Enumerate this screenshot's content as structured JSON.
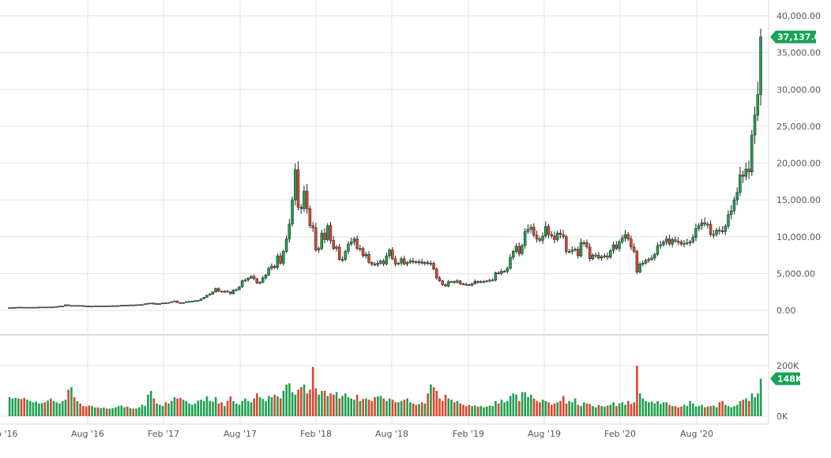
{
  "chart_data": {
    "type": "candlestick",
    "interval": "weekly",
    "x_tick_labels": [
      "b '16",
      "Aug '16",
      "Feb '17",
      "Aug '17",
      "Feb '18",
      "Aug '18",
      "Feb '19",
      "Aug '19",
      "Feb '20",
      "Aug '20"
    ],
    "price_axis": {
      "ticks": [
        "0.00",
        "5,000.00",
        "10,000.00",
        "15,000.00",
        "20,000.00",
        "25,000.00",
        "30,000.00",
        "35,000.00",
        "40,000.00"
      ],
      "ylim": [
        0,
        40000
      ]
    },
    "volume_axis": {
      "ticks": [
        "0K",
        "200K"
      ],
      "ylim": [
        0,
        200000
      ]
    },
    "last_price_label": "37,137.08",
    "last_volume_label": "148K",
    "colors": {
      "up": "#1f9e50",
      "down": "#d9472f",
      "badge": "#17a355",
      "grid": "#e3e3e3"
    },
    "grid": true,
    "close": [
      370,
      380,
      410,
      435,
      415,
      410,
      415,
      416,
      420,
      425,
      440,
      460,
      450,
      455,
      445,
      470,
      530,
      575,
      580,
      760,
      660,
      670,
      650,
      665,
      655,
      590,
      585,
      575,
      575,
      610,
      605,
      610,
      610,
      605,
      615,
      640,
      640,
      650,
      700,
      710,
      705,
      740,
      735,
      760,
      780,
      790,
      890,
      960,
      1000,
      830,
      920,
      920,
      1010,
      1000,
      1060,
      1180,
      1270,
      1050,
      970,
      1040,
      1180,
      1210,
      1240,
      1330,
      1350,
      1550,
      1770,
      2050,
      2200,
      2500,
      2950,
      2600,
      2500,
      2600,
      2500,
      2250,
      2750,
      2800,
      3200,
      4000,
      4100,
      4380,
      4600,
      4300,
      3700,
      3800,
      4400,
      4800,
      5700,
      6000,
      5800,
      7400,
      6400,
      8000,
      9700,
      11700,
      15000,
      19100,
      14000,
      13800,
      16200,
      13800,
      11500,
      11200,
      8200,
      8400,
      10500,
      9600,
      11500,
      9500,
      8400,
      8600,
      6900,
      6900,
      8000,
      9000,
      9300,
      9700,
      8400,
      8400,
      7400,
      7600,
      6500,
      6300,
      6200,
      6400,
      6700,
      6300,
      7400,
      8200,
      7000,
      6300,
      6400,
      7000,
      6300,
      6500,
      6700,
      6600,
      6500,
      6600,
      6400,
      6500,
      6350,
      6400,
      5600,
      4400,
      4000,
      3500,
      3300,
      3900,
      3900,
      3800,
      4000,
      3600,
      3550,
      3500,
      3400,
      3600,
      3950,
      3800,
      3900,
      3900,
      4000,
      4100,
      4100,
      5100,
      5000,
      5300,
      5300,
      5700,
      7200,
      8000,
      8700,
      7700,
      8800,
      10700,
      11000,
      11300,
      10200,
      9700,
      9500,
      10100,
      11400,
      10300,
      10100,
      9600,
      10500,
      10300,
      10000,
      8000,
      8000,
      8200,
      8300,
      7400,
      9200,
      9200,
      8600,
      7000,
      7500,
      7500,
      7100,
      7300,
      7400,
      7200,
      8100,
      8900,
      8400,
      9300,
      9800,
      10300,
      9700,
      8600,
      8000,
      5200,
      6300,
      6400,
      6800,
      6900,
      7100,
      7600,
      8800,
      8900,
      9300,
      9700,
      9000,
      9600,
      9400,
      9300,
      9000,
      9100,
      9200,
      9300,
      9900,
      11100,
      11500,
      11900,
      11700,
      11700,
      10300,
      10300,
      10900,
      10800,
      10700,
      11400,
      13000,
      13500,
      15000,
      16000,
      18400,
      18200,
      19200,
      18800,
      23800,
      26500,
      29300,
      37137.08
    ],
    "volume_k": [
      75,
      70,
      72,
      70,
      68,
      72,
      65,
      60,
      55,
      58,
      50,
      52,
      55,
      62,
      70,
      60,
      55,
      50,
      60,
      65,
      105,
      115,
      75,
      60,
      50,
      40,
      38,
      42,
      40,
      35,
      35,
      32,
      34,
      30,
      30,
      32,
      35,
      40,
      42,
      35,
      38,
      32,
      30,
      30,
      35,
      45,
      40,
      85,
      100,
      70,
      50,
      45,
      40,
      55,
      50,
      60,
      75,
      70,
      72,
      65,
      60,
      50,
      45,
      50,
      62,
      65,
      60,
      78,
      60,
      58,
      75,
      50,
      55,
      40,
      60,
      78,
      60,
      50,
      45,
      60,
      70,
      60,
      55,
      70,
      90,
      75,
      68,
      60,
      80,
      75,
      85,
      78,
      70,
      100,
      125,
      130,
      95,
      85,
      105,
      115,
      125,
      90,
      105,
      195,
      110,
      85,
      100,
      100,
      80,
      90,
      85,
      95,
      70,
      80,
      90,
      75,
      70,
      65,
      85,
      60,
      68,
      70,
      65,
      60,
      75,
      78,
      80,
      70,
      60,
      70,
      65,
      55,
      55,
      60,
      65,
      70,
      55,
      50,
      45,
      48,
      55,
      50,
      90,
      125,
      115,
      100,
      70,
      60,
      85,
      70,
      65,
      55,
      60,
      50,
      45,
      40,
      45,
      40,
      42,
      38,
      40,
      35,
      38,
      42,
      40,
      60,
      50,
      65,
      55,
      60,
      80,
      90,
      85,
      60,
      95,
      95,
      75,
      85,
      70,
      60,
      55,
      65,
      60,
      55,
      45,
      50,
      55,
      60,
      80,
      50,
      60,
      55,
      70,
      45,
      40,
      55,
      50,
      48,
      40,
      35,
      45,
      40,
      38,
      42,
      45,
      55,
      40,
      50,
      55,
      45,
      60,
      48,
      55,
      200,
      90,
      70,
      60,
      55,
      58,
      50,
      60,
      48,
      55,
      55,
      45,
      40,
      40,
      35,
      38,
      45,
      40,
      60,
      50,
      38,
      40,
      45,
      35,
      38,
      40,
      42,
      35,
      55,
      60,
      45,
      40,
      35,
      40,
      45,
      60,
      65,
      70,
      60,
      90,
      75,
      90,
      148
    ]
  }
}
